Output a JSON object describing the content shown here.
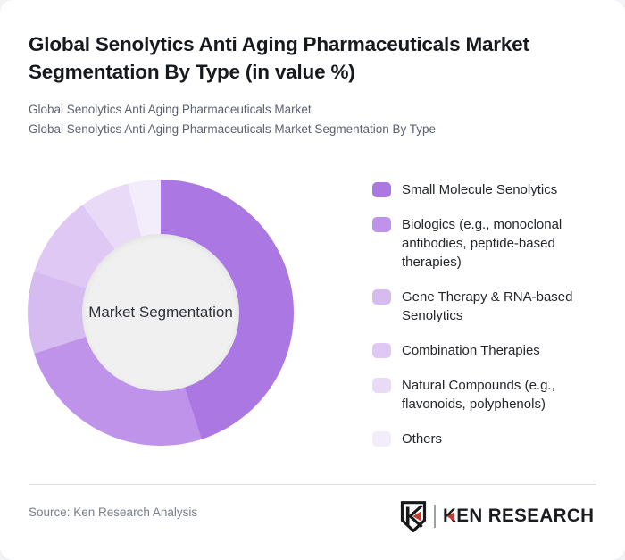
{
  "header": {
    "title_line1": "Global Senolytics Anti Aging Pharmaceuticals Market",
    "title_line2": "Segmentation By Type (in value %)",
    "subtitle_line1": "Global Senolytics Anti Aging Pharmaceuticals Market",
    "subtitle_line2": "Global Senolytics Anti Aging Pharmaceuticals Market Segmentation By Type"
  },
  "chart_data": {
    "type": "pie",
    "subtype": "donut",
    "title": "Global Senolytics Anti Aging Pharmaceuticals Market Segmentation By Type (in value %)",
    "unit": "value %",
    "center_label": "Market Segmentation",
    "legend_position": "right",
    "start_angle_deg": 0,
    "direction": "clockwise",
    "categories": [
      "Small Molecule Senolytics",
      "Biologics (e.g., monoclonal antibodies, peptide-based therapies)",
      "Gene Therapy & RNA-based Senolytics",
      "Combination Therapies",
      "Natural Compounds (e.g., flavonoids, polyphenols)",
      "Others"
    ],
    "values": [
      45,
      25,
      10,
      10,
      6,
      4
    ],
    "colors": [
      "#ab77e3",
      "#bf93e9",
      "#d6bbf1",
      "#dfc9f4",
      "#e9daf8",
      "#f3ecfb"
    ],
    "hole_color": "#f0f0f0"
  },
  "footer": {
    "source": "Source: Ken Research Analysis",
    "brand": {
      "wordmark": "KEN RESEARCH",
      "badge_letter": "K",
      "red": "#c23a30",
      "black": "#1a1c1f"
    }
  }
}
